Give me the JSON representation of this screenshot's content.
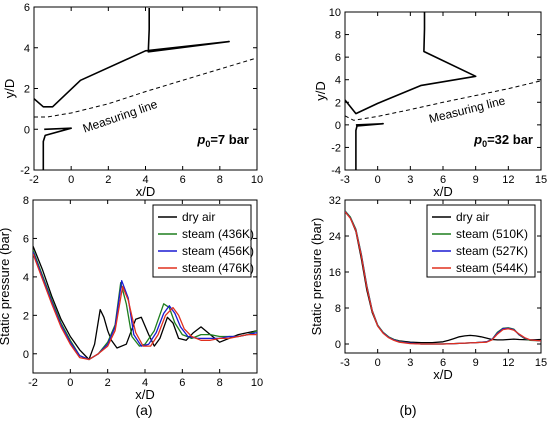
{
  "panels": [
    {
      "label": "(a)"
    },
    {
      "label": "(b)"
    }
  ],
  "chart_data": [
    {
      "type": "line",
      "panel": "a-top",
      "xlabel": "x/D",
      "ylabel": "y/D",
      "xlim": [
        -2,
        10
      ],
      "ylim": [
        -2,
        6
      ],
      "xticks": [
        -2,
        0,
        2,
        4,
        6,
        8,
        10
      ],
      "yticks": [
        -2,
        0,
        2,
        4,
        6
      ],
      "annotation": {
        "base": "p",
        "sub": "0",
        "rest": "=7 bar"
      },
      "measuring_label": "Measuring line",
      "series": [
        {
          "style": "solid",
          "x": [
            4.2,
            4.2,
            4.15,
            8.5,
            4.0,
            0.5,
            -1.0,
            -1.5,
            -2.0
          ],
          "y": [
            5.95,
            4.9,
            3.8,
            4.3,
            3.85,
            2.4,
            1.1,
            1.1,
            1.5
          ]
        },
        {
          "style": "solid",
          "x": [
            -1.5,
            -1.5,
            -1.4,
            0.0,
            -1.45
          ],
          "y": [
            -2.0,
            -0.6,
            -0.3,
            0.05,
            0.0
          ]
        },
        {
          "style": "dashed",
          "x": [
            -2.0,
            -1.3,
            0.0,
            2.0,
            4.0,
            6.0,
            8.0,
            10.0
          ],
          "y": [
            0.6,
            0.6,
            0.8,
            1.25,
            1.85,
            2.4,
            2.95,
            3.5
          ]
        }
      ]
    },
    {
      "type": "line",
      "panel": "b-top",
      "xlabel": "x/D",
      "ylabel": "y/D",
      "xlim": [
        -3,
        15
      ],
      "ylim": [
        -4,
        10
      ],
      "xticks": [
        -3,
        0,
        3,
        6,
        9,
        12,
        15
      ],
      "yticks": [
        -4,
        -2,
        0,
        2,
        4,
        6,
        8,
        10
      ],
      "annotation": {
        "base": "p",
        "sub": "0",
        "rest": "=32 bar"
      },
      "measuring_label": "Measuring line",
      "series": [
        {
          "style": "solid",
          "x": [
            4.3,
            4.3,
            4.25,
            9.0,
            4.0,
            0.0,
            -2.0,
            -3.0
          ],
          "y": [
            10.0,
            8.5,
            6.5,
            4.3,
            3.5,
            1.9,
            1.0,
            2.2
          ]
        },
        {
          "style": "solid",
          "x": [
            -2.0,
            -2.0,
            -1.9,
            0.5,
            -2.0
          ],
          "y": [
            -4.0,
            -0.5,
            -0.1,
            0.1,
            0.0
          ]
        },
        {
          "style": "dashed",
          "x": [
            -3.0,
            -2.2,
            0.0,
            3.0,
            6.0,
            9.0,
            12.0,
            15.0
          ],
          "y": [
            0.8,
            0.4,
            0.75,
            1.35,
            2.0,
            2.6,
            3.2,
            3.9
          ]
        }
      ]
    },
    {
      "type": "line",
      "panel": "a-bottom",
      "xlabel": "x/D",
      "ylabel": "Static pressure (bar)",
      "xlim": [
        -2,
        10
      ],
      "ylim": [
        -1,
        8
      ],
      "xticks": [
        -2,
        0,
        2,
        4,
        6,
        8,
        10
      ],
      "yticks": [
        0,
        2,
        4,
        6,
        8
      ],
      "legend": "top-right",
      "series": [
        {
          "name": "dry air",
          "color": "#000000",
          "x": [
            -2,
            -1.5,
            -1,
            -0.5,
            0,
            0.5,
            1,
            1.3,
            1.6,
            1.8,
            2.0,
            2.2,
            2.5,
            3.0,
            3.5,
            3.8,
            4.2,
            4.5,
            4.8,
            5.2,
            5.5,
            5.8,
            6.2,
            6.6,
            7.0,
            7.5,
            8.0,
            8.5,
            9.0,
            9.5,
            10
          ],
          "y": [
            5.6,
            4.4,
            3.0,
            1.8,
            0.9,
            0.2,
            -0.3,
            0.5,
            2.3,
            1.9,
            1.2,
            0.7,
            0.3,
            0.5,
            1.8,
            1.9,
            1.0,
            0.4,
            0.8,
            1.9,
            1.6,
            0.8,
            0.7,
            1.1,
            1.4,
            1.0,
            0.6,
            0.8,
            1.0,
            1.1,
            1.2
          ]
        },
        {
          "name": "steam (436K)",
          "color": "#1e7e1e",
          "x": [
            -2,
            -1.5,
            -1,
            -0.5,
            0,
            0.5,
            1,
            1.5,
            2.0,
            2.4,
            2.7,
            3.0,
            3.3,
            3.7,
            4.0,
            4.5,
            5.0,
            5.3,
            5.6,
            6.0,
            6.5,
            7.0,
            7.5,
            8.0,
            8.5,
            9.0,
            9.5,
            10
          ],
          "y": [
            5.4,
            4.1,
            2.8,
            1.6,
            0.7,
            -0.1,
            -0.3,
            0.0,
            0.6,
            1.5,
            3.7,
            2.6,
            0.9,
            0.4,
            0.5,
            1.2,
            2.6,
            2.4,
            1.6,
            1.0,
            0.8,
            1.0,
            1.0,
            0.9,
            0.9,
            0.9,
            1.0,
            1.2
          ]
        },
        {
          "name": "steam (456K)",
          "color": "#1a1ad2",
          "x": [
            -2,
            -1.5,
            -1,
            -0.5,
            0,
            0.5,
            1,
            1.5,
            2.0,
            2.4,
            2.75,
            3.1,
            3.4,
            3.8,
            4.2,
            4.6,
            5.0,
            5.3,
            5.6,
            5.9,
            6.3,
            6.8,
            7.5,
            8.0,
            8.5,
            9.0,
            9.5,
            10
          ],
          "y": [
            5.3,
            4.0,
            2.7,
            1.5,
            0.6,
            -0.1,
            -0.3,
            0.0,
            0.5,
            1.4,
            3.8,
            2.9,
            1.0,
            0.4,
            0.5,
            1.1,
            2.1,
            2.5,
            2.1,
            1.4,
            0.9,
            0.8,
            0.8,
            0.8,
            0.9,
            0.9,
            1.0,
            1.1
          ]
        },
        {
          "name": "steam (476K)",
          "color": "#e0301e",
          "x": [
            -2,
            -1.5,
            -1,
            -0.5,
            0,
            0.5,
            1,
            1.5,
            2.0,
            2.4,
            2.8,
            3.1,
            3.5,
            3.9,
            4.3,
            4.7,
            5.1,
            5.5,
            5.8,
            6.1,
            6.5,
            7.0,
            7.5,
            8.0,
            8.5,
            9.0,
            9.5,
            10
          ],
          "y": [
            5.2,
            3.9,
            2.6,
            1.4,
            0.5,
            -0.2,
            -0.3,
            0.0,
            0.4,
            1.2,
            3.5,
            2.8,
            1.1,
            0.4,
            0.4,
            1.0,
            2.0,
            2.4,
            2.0,
            1.3,
            0.9,
            0.7,
            0.7,
            0.8,
            0.8,
            0.9,
            1.0,
            1.0
          ]
        }
      ]
    },
    {
      "type": "line",
      "panel": "b-bottom",
      "xlabel": "x/D",
      "ylabel": "Static pressure (bar)",
      "xlim": [
        -3,
        15
      ],
      "ylim": [
        -2,
        32
      ],
      "xticks": [
        -3,
        0,
        3,
        6,
        9,
        12,
        15
      ],
      "yticks": [
        0,
        8,
        16,
        24,
        32
      ],
      "legend": "top-right",
      "series": [
        {
          "name": "dry air",
          "color": "#000000",
          "x": [
            -3,
            -2.5,
            -2,
            -1.5,
            -1,
            -0.5,
            0,
            0.5,
            1,
            1.5,
            2,
            3,
            4,
            5,
            6,
            6.5,
            7,
            7.5,
            8,
            8.5,
            9,
            9.5,
            10,
            10.5,
            11,
            11.5,
            12,
            12.5,
            13,
            14,
            15
          ],
          "y": [
            29.5,
            28,
            25,
            19,
            12,
            7,
            4,
            2.5,
            1.5,
            1.0,
            0.7,
            0.4,
            0.3,
            0.3,
            0.5,
            0.8,
            1.2,
            1.6,
            1.8,
            1.9,
            1.8,
            1.6,
            1.3,
            1.0,
            0.9,
            0.9,
            1.0,
            1.1,
            1.0,
            0.9,
            1.0
          ]
        },
        {
          "name": "steam (510K)",
          "color": "#1e7e1e",
          "x": [
            -3,
            -2.5,
            -2,
            -1.5,
            -1,
            -0.5,
            0,
            0.5,
            1,
            1.5,
            2,
            3,
            4,
            5,
            6,
            7,
            8,
            9,
            10,
            10.5,
            11,
            11.5,
            12,
            12.5,
            13,
            13.5,
            14,
            15
          ],
          "y": [
            29.6,
            28.2,
            25.5,
            20,
            13,
            7.5,
            4.2,
            2.6,
            1.6,
            1.0,
            0.6,
            0.2,
            0.0,
            0.0,
            0.0,
            0.1,
            0.2,
            0.3,
            0.5,
            1.0,
            2.6,
            3.5,
            3.6,
            3.3,
            2.0,
            1.2,
            0.8,
            0.7
          ]
        },
        {
          "name": "steam (527K)",
          "color": "#1a1ad2",
          "x": [
            -3,
            -2.5,
            -2,
            -1.5,
            -1,
            -0.5,
            0,
            0.5,
            1,
            1.5,
            2,
            3,
            4,
            5,
            6,
            7,
            8,
            9,
            10,
            10.5,
            11,
            11.5,
            12,
            12.5,
            13,
            13.5,
            14,
            15
          ],
          "y": [
            29.5,
            28.0,
            25.3,
            19.8,
            12.8,
            7.4,
            4.1,
            2.5,
            1.5,
            0.9,
            0.5,
            0.2,
            0.0,
            0.0,
            0.0,
            0.1,
            0.2,
            0.3,
            0.5,
            1.0,
            2.4,
            3.4,
            3.5,
            3.2,
            2.1,
            1.3,
            0.9,
            0.7
          ]
        },
        {
          "name": "steam (544K)",
          "color": "#e0301e",
          "x": [
            -3,
            -2.5,
            -2,
            -1.5,
            -1,
            -0.5,
            0,
            0.5,
            1,
            1.5,
            2,
            3,
            4,
            5,
            6,
            7,
            8,
            9,
            10,
            10.5,
            11,
            11.5,
            12,
            12.5,
            13,
            13.5,
            14,
            15
          ],
          "y": [
            29.4,
            27.9,
            25.2,
            19.6,
            12.6,
            7.3,
            4.0,
            2.4,
            1.4,
            0.8,
            0.4,
            0.1,
            0.0,
            0.0,
            0.0,
            0.1,
            0.2,
            0.3,
            0.4,
            0.9,
            2.2,
            3.2,
            3.4,
            3.1,
            2.2,
            1.4,
            0.9,
            0.7
          ]
        }
      ]
    }
  ]
}
